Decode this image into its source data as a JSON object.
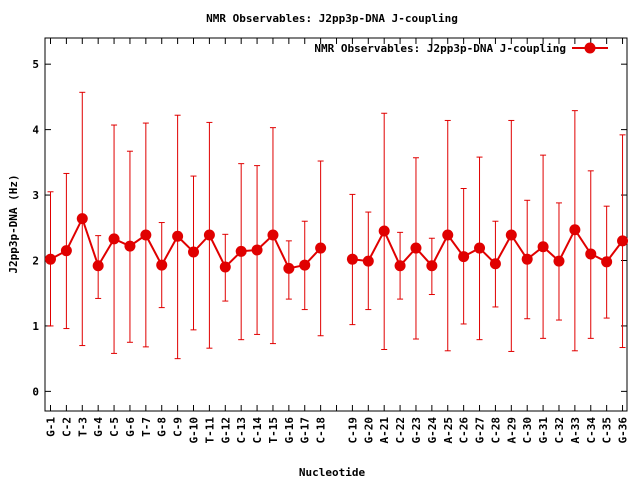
{
  "colors": {
    "series": "#e00000",
    "axis": "#000000",
    "background": "#ffffff"
  },
  "chart_data": {
    "type": "line",
    "title": "NMR Observables: J2pp3p-DNA J-coupling",
    "xlabel": "Nucleotide",
    "ylabel": "J2pp3p-DNA (Hz)",
    "ylim": [
      -0.3,
      5.4
    ],
    "yticks": [
      0,
      1,
      2,
      3,
      4,
      5
    ],
    "grid": false,
    "legend_position": "top-right",
    "categories": [
      "G-1",
      "C-2",
      "T-3",
      "G-4",
      "C-5",
      "G-6",
      "T-7",
      "G-8",
      "C-9",
      "G-10",
      "T-11",
      "G-12",
      "C-13",
      "C-14",
      "T-15",
      "G-16",
      "G-17",
      "C-18",
      "",
      "C-19",
      "G-20",
      "A-21",
      "C-22",
      "G-23",
      "G-24",
      "A-25",
      "C-26",
      "G-27",
      "C-28",
      "A-29",
      "C-30",
      "G-31",
      "C-32",
      "A-33",
      "C-34",
      "C-35",
      "G-36"
    ],
    "series": [
      {
        "name": "NMR Observables: J2pp3p-DNA J-coupling",
        "values": [
          2.02,
          2.15,
          2.64,
          1.92,
          2.33,
          2.22,
          2.39,
          1.93,
          2.37,
          2.13,
          2.39,
          1.9,
          2.14,
          2.16,
          2.39,
          1.88,
          1.93,
          2.19,
          null,
          2.02,
          1.99,
          2.45,
          1.92,
          2.19,
          1.92,
          2.39,
          2.06,
          2.19,
          1.95,
          2.39,
          2.02,
          2.21,
          1.99,
          2.47,
          2.1,
          1.98,
          2.3
        ],
        "err_low": [
          1.0,
          0.96,
          0.7,
          1.42,
          0.58,
          0.75,
          0.68,
          1.28,
          0.5,
          0.94,
          0.66,
          1.38,
          0.79,
          0.87,
          0.73,
          1.41,
          1.25,
          0.85,
          null,
          1.02,
          1.25,
          0.64,
          1.41,
          0.8,
          1.48,
          0.62,
          1.03,
          0.79,
          1.29,
          0.61,
          1.11,
          0.81,
          1.09,
          0.62,
          0.81,
          1.12,
          0.67
        ],
        "err_high": [
          3.05,
          3.33,
          4.57,
          2.38,
          4.07,
          3.67,
          4.1,
          2.58,
          4.22,
          3.29,
          4.11,
          2.4,
          3.48,
          3.45,
          4.03,
          2.3,
          2.6,
          3.52,
          null,
          3.01,
          2.74,
          4.25,
          2.43,
          3.57,
          2.34,
          4.14,
          3.1,
          3.58,
          2.6,
          4.14,
          2.92,
          3.61,
          2.88,
          4.29,
          3.37,
          2.83,
          3.92
        ]
      }
    ]
  }
}
